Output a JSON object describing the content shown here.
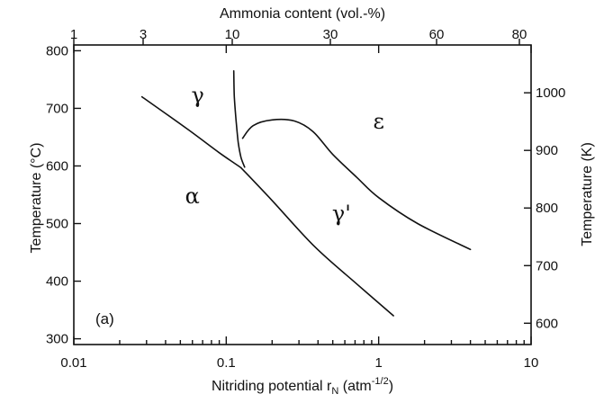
{
  "chart_data": {
    "type": "line",
    "top_axis": {
      "label": "Ammonia content (vol.-%)",
      "ticks": [
        "1",
        "3",
        "10",
        "30",
        "60",
        "80"
      ]
    },
    "bottom_axis": {
      "label_main": "Nitriding potential r",
      "label_sub": "N",
      "label_unit_open": " (atm",
      "label_unit_sup": "-1/2",
      "label_unit_close": ")",
      "scale": "log",
      "xlim": [
        0.01,
        10
      ],
      "ticks": [
        {
          "value": 0.01,
          "label": "0.01"
        },
        {
          "value": 0.1,
          "label": "0.1"
        },
        {
          "value": 1,
          "label": "1"
        },
        {
          "value": 10,
          "label": "10"
        }
      ]
    },
    "left_axis": {
      "label": "Temperature (°C)",
      "ylim": [
        290,
        810
      ],
      "ticks": [
        {
          "value": 300,
          "label": "300"
        },
        {
          "value": 400,
          "label": "400"
        },
        {
          "value": 500,
          "label": "500"
        },
        {
          "value": 600,
          "label": "600"
        },
        {
          "value": 700,
          "label": "700"
        },
        {
          "value": 800,
          "label": "800"
        }
      ]
    },
    "right_axis": {
      "label": "Temperature (K)",
      "ticks": [
        {
          "value": 600,
          "label": "600"
        },
        {
          "value": 700,
          "label": "700"
        },
        {
          "value": 800,
          "label": "800"
        },
        {
          "value": 900,
          "label": "900"
        },
        {
          "value": 1000,
          "label": "1000"
        }
      ]
    },
    "panel_label": "(a)",
    "series": [
      {
        "points": [
          [
            0.028,
            720
          ],
          [
            0.055,
            665
          ],
          [
            0.09,
            623
          ],
          [
            0.125,
            597
          ]
        ]
      },
      {
        "points": [
          [
            0.125,
            597
          ],
          [
            0.2,
            540
          ],
          [
            0.38,
            460
          ],
          [
            0.72,
            395
          ],
          [
            1.25,
            340
          ]
        ]
      },
      {
        "points": [
          [
            0.112,
            765
          ],
          [
            0.113,
            720
          ],
          [
            0.116,
            680
          ],
          [
            0.12,
            640
          ],
          [
            0.125,
            615
          ],
          [
            0.132,
            598
          ]
        ]
      },
      {
        "points": [
          [
            0.128,
            648
          ],
          [
            0.15,
            670
          ],
          [
            0.2,
            680
          ],
          [
            0.28,
            678
          ],
          [
            0.37,
            660
          ],
          [
            0.5,
            620
          ],
          [
            0.72,
            580
          ],
          [
            1.0,
            545
          ],
          [
            1.8,
            500
          ],
          [
            4.0,
            455
          ]
        ]
      }
    ],
    "regions": [
      {
        "label": "γ",
        "x": 0.065,
        "y": 710
      },
      {
        "label": "ε",
        "x": 1.0,
        "y": 665
      },
      {
        "label": "α",
        "x": 0.06,
        "y": 535
      },
      {
        "label": "γ'",
        "x": 0.57,
        "y": 505
      }
    ]
  }
}
